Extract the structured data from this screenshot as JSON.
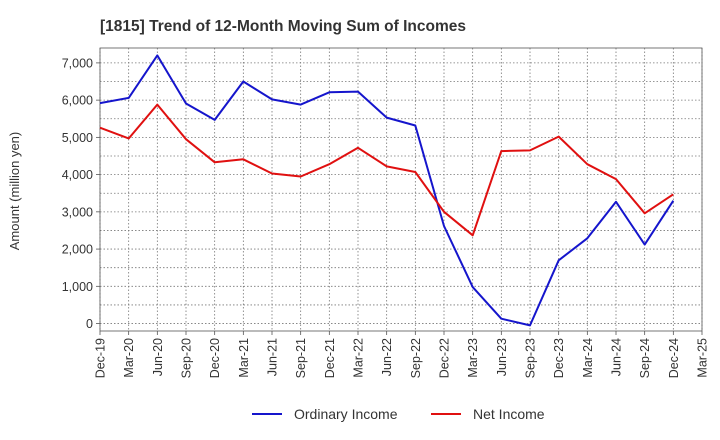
{
  "chart_data": {
    "type": "line",
    "title": "[1815]  Trend of 12-Month Moving Sum of Incomes",
    "ylabel": "Amount (million yen)",
    "xlabel": "",
    "ylim": [
      -200,
      7400
    ],
    "yticks": [
      0,
      1000,
      2000,
      3000,
      4000,
      5000,
      6000,
      7000
    ],
    "ytick_labels": [
      "0",
      "1,000",
      "2,000",
      "3,000",
      "4,000",
      "5,000",
      "6,000",
      "7,000"
    ],
    "categories": [
      "Dec-19",
      "Mar-20",
      "Jun-20",
      "Sep-20",
      "Dec-20",
      "Mar-21",
      "Jun-21",
      "Sep-21",
      "Dec-21",
      "Mar-22",
      "Jun-22",
      "Sep-22",
      "Dec-22",
      "Mar-23",
      "Jun-23",
      "Sep-23",
      "Dec-23",
      "Mar-24",
      "Jun-24",
      "Sep-24",
      "Dec-24",
      "Mar-25"
    ],
    "grid": true,
    "legend_position": "bottom-center",
    "series": [
      {
        "name": "Ordinary Income",
        "color": "#1515cc",
        "values": [
          5920,
          6060,
          7200,
          5910,
          5470,
          6500,
          6020,
          5880,
          6210,
          6230,
          5530,
          5320,
          2620,
          980,
          130,
          -50,
          1700,
          2290,
          3270,
          2120,
          3300,
          null
        ]
      },
      {
        "name": "Net Income",
        "color": "#e01010",
        "values": [
          5260,
          4970,
          5880,
          4950,
          4330,
          4410,
          4030,
          3950,
          4280,
          4720,
          4220,
          4070,
          3000,
          2370,
          4630,
          4650,
          5020,
          4280,
          3880,
          2960,
          3470,
          null
        ]
      }
    ]
  }
}
